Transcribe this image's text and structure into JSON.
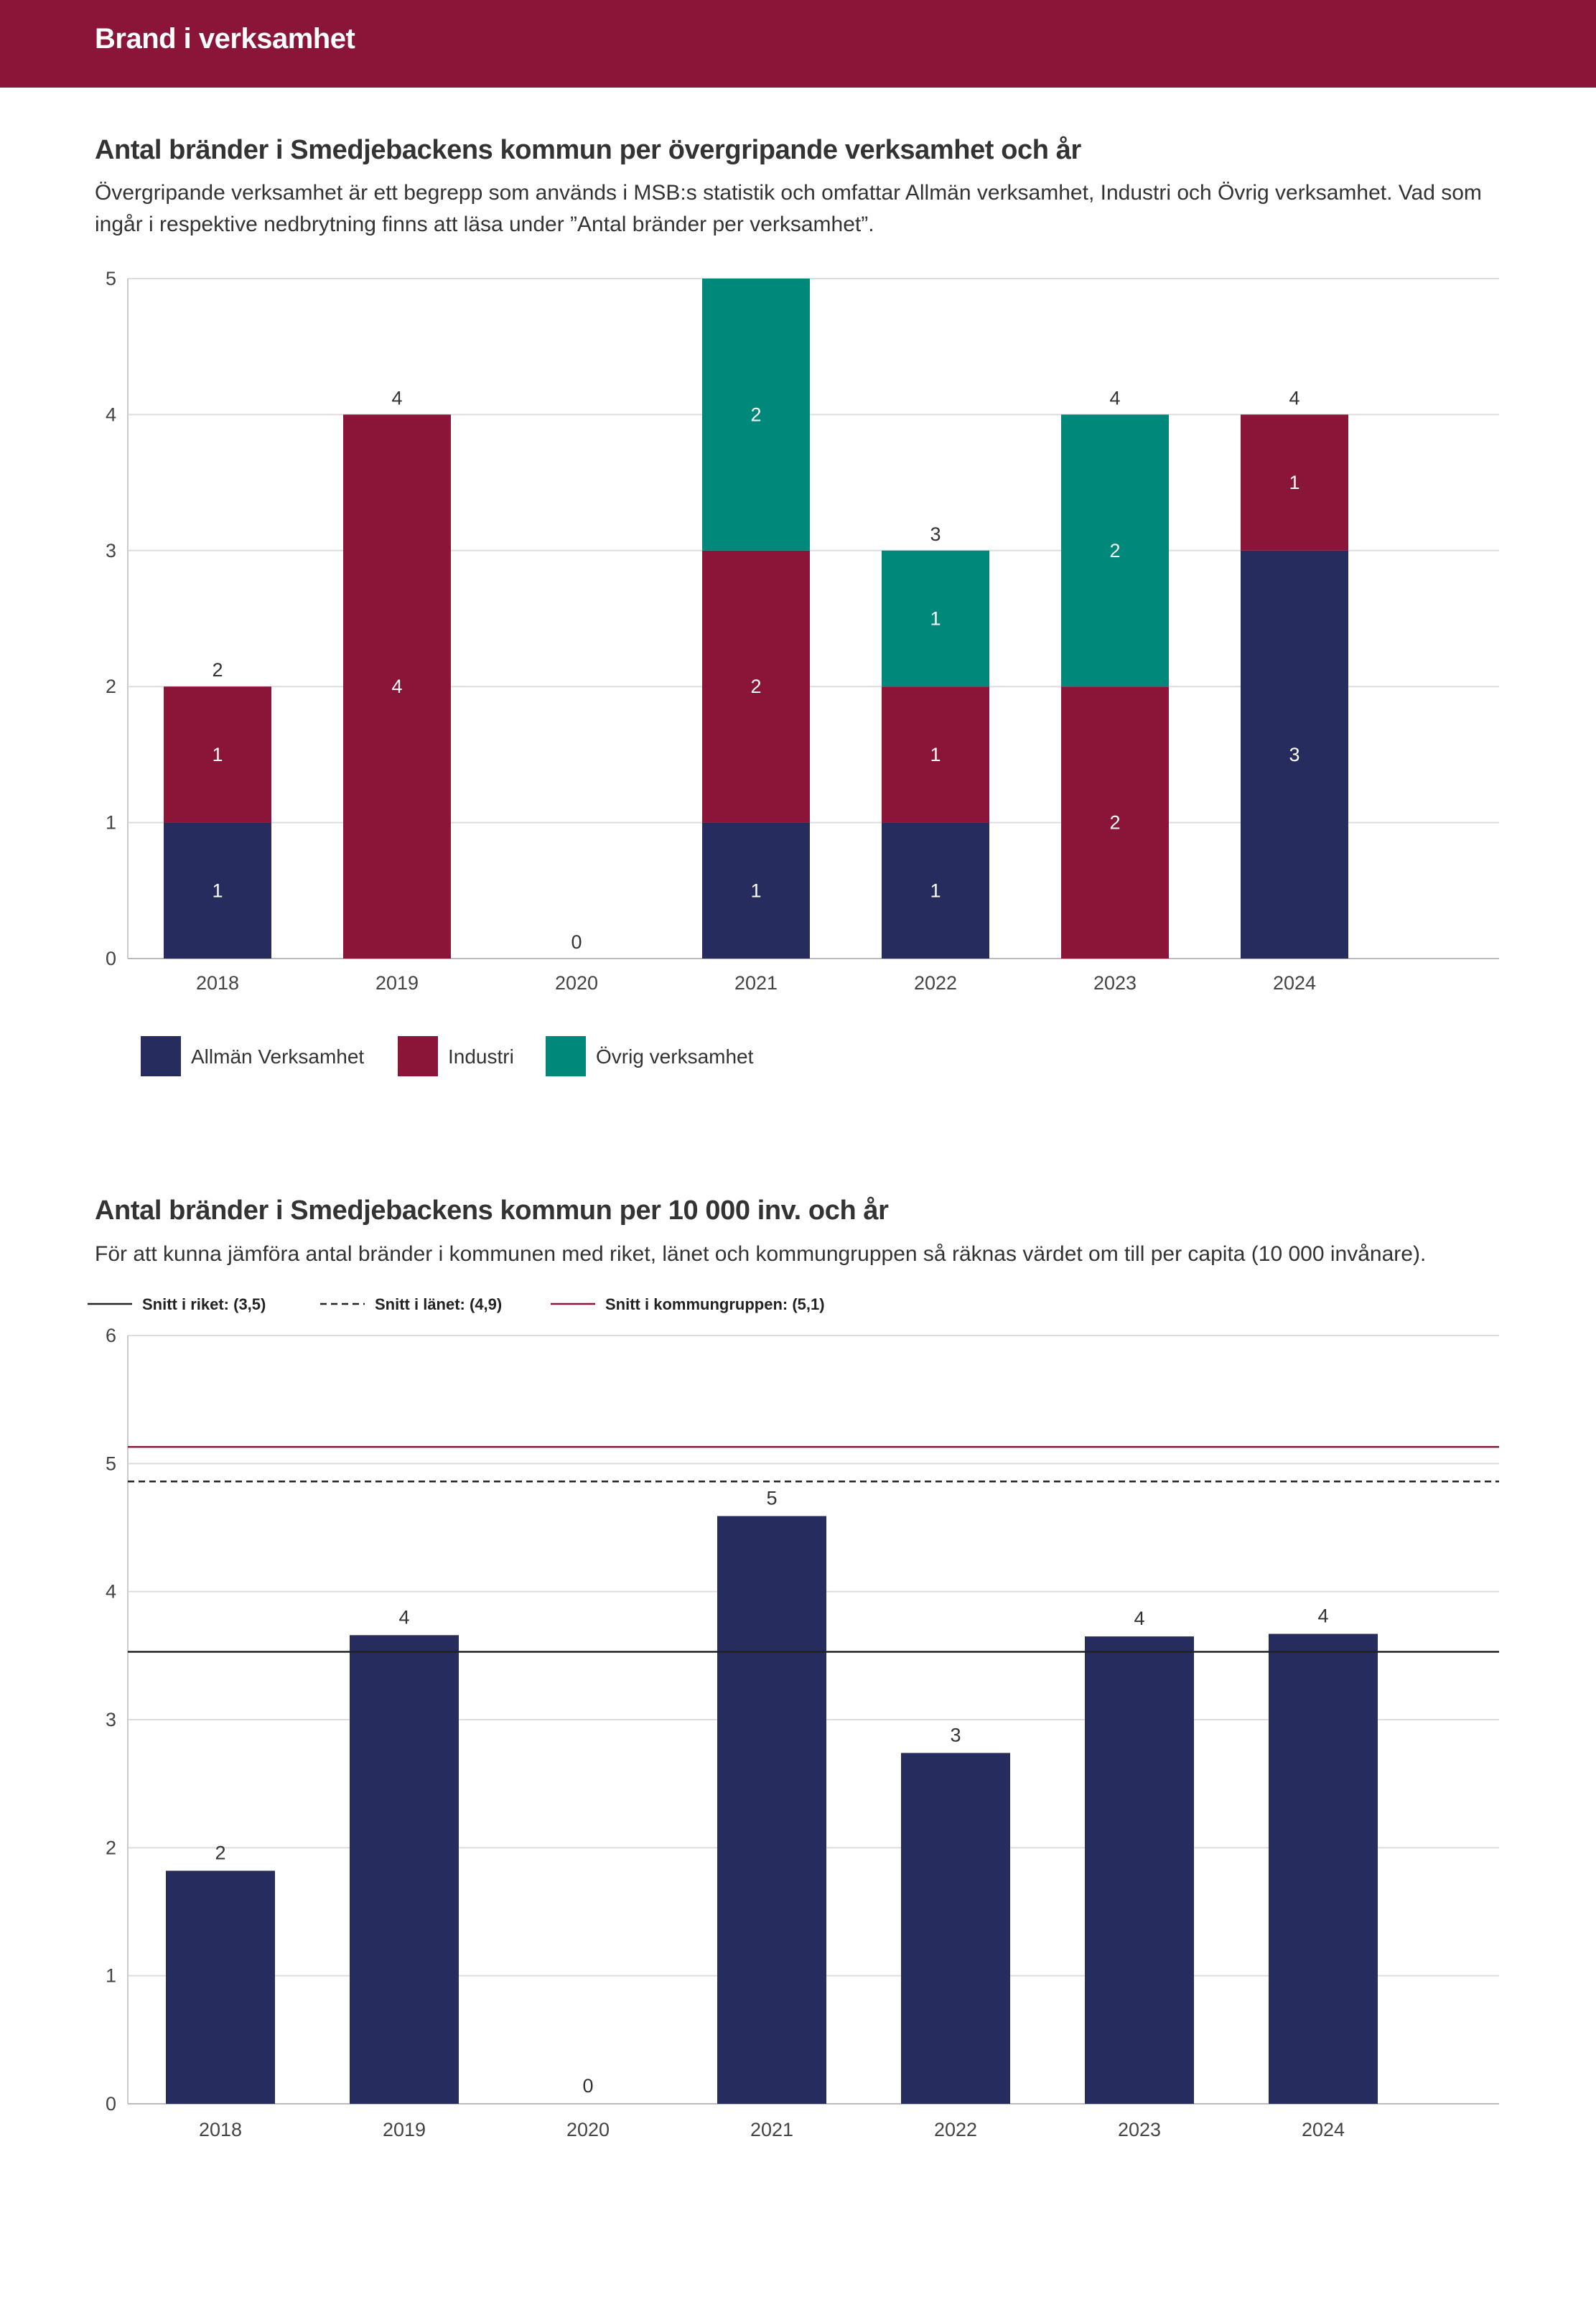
{
  "header": {
    "title": "Brand i verksamhet"
  },
  "section1": {
    "title": "Antal bränder i Smedjebackens kommun per övergripande verksamhet och år",
    "description": "Övergripande verksamhet är ett begrepp som används i MSB:s statistik och omfattar Allmän verksamhet, Industri och Övrig verksamhet. Vad som ingår i respektive nedbrytning finns att läsa under ”Antal bränder per verksamhet”."
  },
  "section2": {
    "title": "Antal bränder i Smedjebackens kommun per 10 000 inv. och år",
    "description": "För att kunna jämföra antal bränder i kommunen med riket, länet och kommungruppen så räknas värdet om till per capita (10 000 invånare)."
  },
  "chart_data": [
    {
      "type": "bar",
      "stacked": true,
      "title": "Antal bränder i Smedjebackens kommun per övergripande verksamhet och år",
      "categories": [
        "2018",
        "2019",
        "2020",
        "2021",
        "2022",
        "2023",
        "2024"
      ],
      "series": [
        {
          "name": "Allmän Verksamhet",
          "color": "#262d5e",
          "values": [
            1,
            0,
            0,
            1,
            1,
            0,
            3
          ]
        },
        {
          "name": "Industri",
          "color": "#8a1538",
          "values": [
            1,
            4,
            0,
            2,
            1,
            2,
            1
          ]
        },
        {
          "name": "Övrig verksamhet",
          "color": "#00897b",
          "values": [
            0,
            0,
            0,
            2,
            1,
            2,
            0
          ]
        }
      ],
      "totals": [
        "2",
        "4",
        "0",
        "",
        "3",
        "4",
        "4"
      ],
      "yticks": [
        "0",
        "1",
        "2",
        "3",
        "4",
        "5"
      ],
      "ylim": [
        0,
        5
      ],
      "xlabel": "",
      "ylabel": "",
      "legend_position": "bottom-left"
    },
    {
      "type": "bar",
      "title": "Antal bränder i Smedjebackens kommun per 10 000 inv. och år",
      "categories": [
        "2018",
        "2019",
        "2020",
        "2021",
        "2022",
        "2023",
        "2024"
      ],
      "values": [
        1.82,
        3.66,
        0,
        4.59,
        2.74,
        3.65,
        3.67
      ],
      "labels": [
        "2",
        "4",
        "0",
        "5",
        "3",
        "4",
        "4"
      ],
      "color": "#262d5e",
      "yticks": [
        "0",
        "1",
        "2",
        "3",
        "4",
        "5",
        "6"
      ],
      "ylim": [
        0,
        6
      ],
      "xlabel": "",
      "ylabel": "",
      "reference_lines": [
        {
          "label": "Snitt i riket: (3,5)",
          "value": 3.53,
          "style": "solid",
          "color": "#222222"
        },
        {
          "label": "Snitt i länet: (4,9)",
          "value": 4.86,
          "style": "dashed",
          "color": "#222222"
        },
        {
          "label": "Snitt i kommungruppen: (5,1)",
          "value": 5.13,
          "style": "solid",
          "color": "#8a1538"
        }
      ]
    }
  ]
}
